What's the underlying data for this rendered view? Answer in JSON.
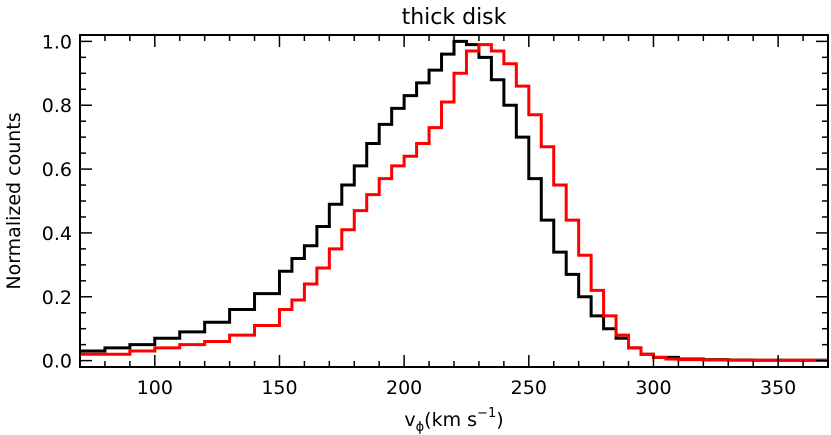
{
  "chart_data": {
    "type": "line",
    "step": true,
    "title": "thick disk",
    "xlabel_main": "v",
    "xlabel_sub": "ϕ",
    "xlabel_units": "(km s",
    "xlabel_exp": "−1",
    "xlabel_close": ")",
    "ylabel": "Normalized counts",
    "xlim": [
      70,
      370
    ],
    "ylim": [
      -0.02,
      1.02
    ],
    "xticks": [
      100,
      150,
      200,
      250,
      300,
      350
    ],
    "yticks": [
      0.0,
      0.2,
      0.4,
      0.6,
      0.8,
      1.0
    ],
    "ytick_labels": [
      "0.0",
      "0.2",
      "0.4",
      "0.6",
      "0.8",
      "1.0"
    ],
    "minor_xtick_step": 10,
    "minor_ytick_step": 0.05,
    "grid": false,
    "legend": "none",
    "series": [
      {
        "color": "#000000",
        "x": [
          70,
          80,
          90,
          100,
          110,
          120,
          130,
          140,
          150,
          155,
          160,
          165,
          170,
          175,
          180,
          185,
          190,
          195,
          200,
          205,
          210,
          215,
          220,
          225,
          230,
          235,
          240,
          245,
          250,
          255,
          260,
          265,
          270,
          275,
          280,
          285,
          290,
          295,
          300,
          305,
          310,
          320,
          330,
          340,
          350,
          360,
          370
        ],
        "y": [
          0.03,
          0.04,
          0.05,
          0.07,
          0.09,
          0.12,
          0.16,
          0.21,
          0.28,
          0.32,
          0.36,
          0.42,
          0.49,
          0.55,
          0.61,
          0.68,
          0.74,
          0.79,
          0.83,
          0.87,
          0.91,
          0.96,
          1.0,
          0.99,
          0.95,
          0.88,
          0.8,
          0.7,
          0.57,
          0.44,
          0.34,
          0.27,
          0.2,
          0.14,
          0.1,
          0.07,
          0.04,
          0.02,
          0.01,
          0.01,
          0.005,
          0.003,
          0.002,
          0.001,
          0.001,
          0.001,
          0.001
        ]
      },
      {
        "color": "#ff0000",
        "x": [
          70,
          80,
          90,
          100,
          110,
          120,
          130,
          140,
          150,
          155,
          160,
          165,
          170,
          175,
          180,
          185,
          190,
          195,
          200,
          205,
          210,
          215,
          220,
          225,
          230,
          235,
          240,
          245,
          250,
          255,
          260,
          265,
          270,
          275,
          280,
          285,
          290,
          295,
          300,
          305,
          310,
          320,
          330,
          340,
          350,
          360,
          370
        ],
        "y": [
          0.02,
          0.02,
          0.03,
          0.04,
          0.05,
          0.06,
          0.08,
          0.11,
          0.16,
          0.19,
          0.24,
          0.29,
          0.35,
          0.41,
          0.47,
          0.52,
          0.57,
          0.61,
          0.64,
          0.68,
          0.73,
          0.81,
          0.9,
          0.97,
          0.99,
          0.97,
          0.93,
          0.86,
          0.77,
          0.67,
          0.55,
          0.44,
          0.33,
          0.22,
          0.14,
          0.08,
          0.04,
          0.02,
          0.01,
          0.005,
          0.003,
          0.002,
          0.001,
          0.001,
          0.001,
          0.001,
          0.001
        ]
      }
    ]
  }
}
